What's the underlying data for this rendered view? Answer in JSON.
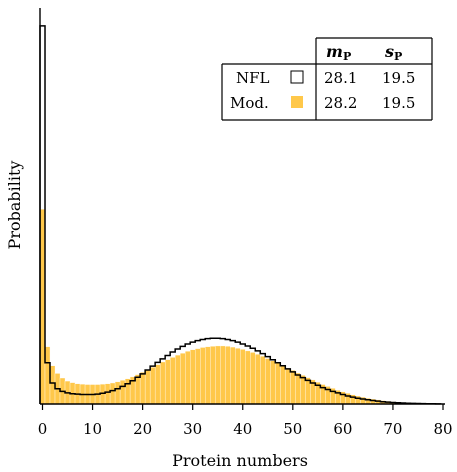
{
  "chart_data": {
    "type": "bar",
    "xlabel": "Protein numbers",
    "ylabel": "Probability",
    "xlim": [
      -0.5,
      80
    ],
    "ylim": [
      0,
      1
    ],
    "x_ticks": [
      0,
      10,
      20,
      30,
      40,
      50,
      60,
      70,
      80
    ],
    "y_ticks_shown": false,
    "series": [
      {
        "name": "NFL",
        "style": "step-outline",
        "color": "#000000",
        "x": [
          0,
          1,
          2,
          3,
          4,
          5,
          6,
          7,
          8,
          9,
          10,
          11,
          12,
          13,
          14,
          15,
          16,
          17,
          18,
          19,
          20,
          21,
          22,
          23,
          24,
          25,
          26,
          27,
          28,
          29,
          30,
          31,
          32,
          33,
          34,
          35,
          36,
          37,
          38,
          39,
          40,
          41,
          42,
          43,
          44,
          45,
          46,
          47,
          48,
          49,
          50,
          51,
          52,
          53,
          54,
          55,
          56,
          57,
          58,
          59,
          60,
          61,
          62,
          63,
          64,
          65,
          66,
          67,
          68,
          69,
          70,
          71,
          72,
          73,
          74,
          75,
          76,
          77,
          78,
          79
        ],
        "values": [
          0.99,
          0.108,
          0.055,
          0.04,
          0.033,
          0.029,
          0.027,
          0.026,
          0.025,
          0.025,
          0.025,
          0.026,
          0.028,
          0.031,
          0.035,
          0.04,
          0.046,
          0.053,
          0.061,
          0.07,
          0.079,
          0.089,
          0.099,
          0.109,
          0.118,
          0.127,
          0.136,
          0.144,
          0.151,
          0.157,
          0.162,
          0.166,
          0.169,
          0.171,
          0.172,
          0.172,
          0.171,
          0.169,
          0.166,
          0.162,
          0.157,
          0.152,
          0.146,
          0.139,
          0.132,
          0.124,
          0.116,
          0.108,
          0.1,
          0.092,
          0.084,
          0.076,
          0.069,
          0.062,
          0.055,
          0.049,
          0.043,
          0.038,
          0.033,
          0.029,
          0.025,
          0.021,
          0.018,
          0.015,
          0.013,
          0.011,
          0.009,
          0.0075,
          0.006,
          0.005,
          0.004,
          0.0032,
          0.0025,
          0.002,
          0.0015,
          0.0012,
          0.0009,
          0.0007,
          0.0005,
          0.0004
        ]
      },
      {
        "name": "Mod.",
        "style": "filled-bars",
        "color": "#ffc84a",
        "x": [
          0,
          1,
          2,
          3,
          4,
          5,
          6,
          7,
          8,
          9,
          10,
          11,
          12,
          13,
          14,
          15,
          16,
          17,
          18,
          19,
          20,
          21,
          22,
          23,
          24,
          25,
          26,
          27,
          28,
          29,
          30,
          31,
          32,
          33,
          34,
          35,
          36,
          37,
          38,
          39,
          40,
          41,
          42,
          43,
          44,
          45,
          46,
          47,
          48,
          49,
          50,
          51,
          52,
          53,
          54,
          55,
          56,
          57,
          58,
          59,
          60,
          61,
          62,
          63,
          64,
          65,
          66,
          67,
          68,
          69,
          70,
          71,
          72,
          73,
          74,
          75,
          76,
          77,
          78,
          79
        ],
        "values": [
          0.51,
          0.15,
          0.1,
          0.08,
          0.068,
          0.06,
          0.056,
          0.053,
          0.052,
          0.051,
          0.051,
          0.051,
          0.052,
          0.053,
          0.055,
          0.058,
          0.062,
          0.066,
          0.071,
          0.077,
          0.083,
          0.089,
          0.096,
          0.103,
          0.11,
          0.116,
          0.122,
          0.128,
          0.133,
          0.138,
          0.142,
          0.145,
          0.148,
          0.15,
          0.151,
          0.152,
          0.152,
          0.151,
          0.149,
          0.146,
          0.143,
          0.139,
          0.135,
          0.13,
          0.125,
          0.119,
          0.113,
          0.107,
          0.101,
          0.094,
          0.088,
          0.081,
          0.075,
          0.069,
          0.063,
          0.057,
          0.051,
          0.046,
          0.041,
          0.036,
          0.032,
          0.028,
          0.024,
          0.021,
          0.018,
          0.015,
          0.013,
          0.011,
          0.009,
          0.0075,
          0.006,
          0.0048,
          0.0038,
          0.003,
          0.0023,
          0.0018,
          0.0014,
          0.001,
          0.0008,
          0.0006
        ]
      }
    ],
    "legend_table": {
      "placement": "top-right",
      "headers": [
        "",
        "m_P",
        "s_P"
      ],
      "header_main": "m",
      "header_sub": "P",
      "header2_main": "s",
      "header2_sub": "P",
      "rows": [
        {
          "label": "NFL",
          "swatch": "#ffffff",
          "m": "28.1",
          "s": "19.5"
        },
        {
          "label": "Mod.",
          "swatch": "#ffc84a",
          "m": "28.2",
          "s": "19.5"
        }
      ]
    }
  }
}
